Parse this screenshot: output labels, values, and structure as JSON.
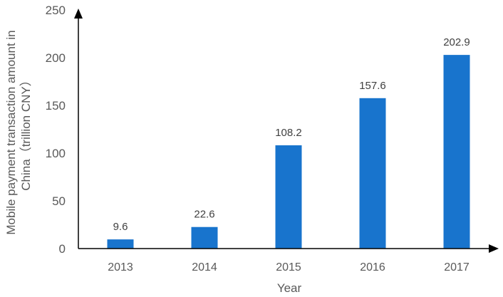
{
  "chart_data": {
    "type": "bar",
    "categories": [
      "2013",
      "2014",
      "2015",
      "2016",
      "2017"
    ],
    "values": [
      9.6,
      22.6,
      108.2,
      157.6,
      202.9
    ],
    "data_labels": [
      "9.6",
      "22.6",
      "108.2",
      "157.6",
      "202.9"
    ],
    "title": "",
    "xlabel": "Year",
    "ylabel_line1": "Mobile payment transaction amount in",
    "ylabel_line2": "China（trillion  CNY）",
    "ylim": [
      0,
      250
    ],
    "yticks": [
      0,
      50,
      100,
      150,
      200,
      250
    ],
    "ytick_labels": [
      "0",
      "50",
      "100",
      "150",
      "200",
      "250"
    ],
    "grid": false,
    "legend": "none",
    "bar_color": "#1874CD",
    "axis_color": "#000000"
  }
}
